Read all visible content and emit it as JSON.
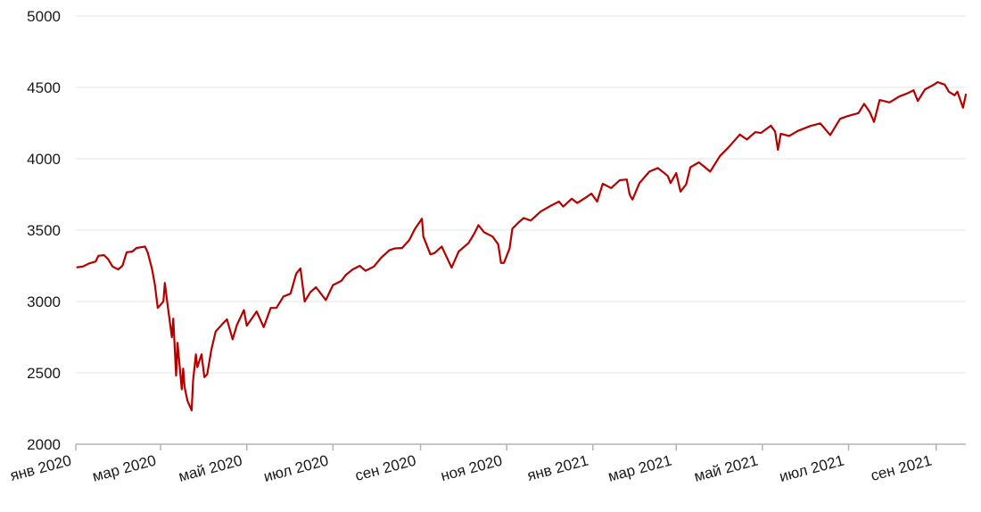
{
  "chart_data": {
    "type": "line",
    "title": "",
    "xlabel": "",
    "ylabel": "",
    "x_range": [
      "2020-01-01",
      "2021-09-22"
    ],
    "ylim": [
      2000,
      5000
    ],
    "y_ticks": [
      {
        "value": 2000,
        "label": "2000"
      },
      {
        "value": 2500,
        "label": "2500"
      },
      {
        "value": 3000,
        "label": "3000"
      },
      {
        "value": 3500,
        "label": "3500"
      },
      {
        "value": 4000,
        "label": "4000"
      },
      {
        "value": 4500,
        "label": "4500"
      },
      {
        "value": 5000,
        "label": "5000"
      }
    ],
    "x_ticks": [
      {
        "date": "2020-01-01",
        "label": "янв 2020"
      },
      {
        "date": "2020-03-01",
        "label": "мар 2020"
      },
      {
        "date": "2020-05-01",
        "label": "май 2020"
      },
      {
        "date": "2020-07-01",
        "label": "июл 2020"
      },
      {
        "date": "2020-09-01",
        "label": "сен 2020"
      },
      {
        "date": "2020-11-01",
        "label": "ноя 2020"
      },
      {
        "date": "2021-01-01",
        "label": "янв 2021"
      },
      {
        "date": "2021-03-01",
        "label": "мар 2021"
      },
      {
        "date": "2021-05-01",
        "label": "май 2021"
      },
      {
        "date": "2021-07-01",
        "label": "июл 2021"
      },
      {
        "date": "2021-09-01",
        "label": "сен 2021"
      }
    ],
    "grid": true,
    "legend": "none",
    "series": [
      {
        "color": "#b50000",
        "points": [
          [
            "2020-01-02",
            3240
          ],
          [
            "2020-01-06",
            3245
          ],
          [
            "2020-01-10",
            3265
          ],
          [
            "2020-01-15",
            3280
          ],
          [
            "2020-01-17",
            3320
          ],
          [
            "2020-01-21",
            3325
          ],
          [
            "2020-01-24",
            3295
          ],
          [
            "2020-01-27",
            3245
          ],
          [
            "2020-01-31",
            3225
          ],
          [
            "2020-02-03",
            3250
          ],
          [
            "2020-02-06",
            3345
          ],
          [
            "2020-02-10",
            3350
          ],
          [
            "2020-02-13",
            3375
          ],
          [
            "2020-02-19",
            3385
          ],
          [
            "2020-02-21",
            3340
          ],
          [
            "2020-02-24",
            3225
          ],
          [
            "2020-02-26",
            3115
          ],
          [
            "2020-02-28",
            2955
          ],
          [
            "2020-03-03",
            3000
          ],
          [
            "2020-03-04",
            3130
          ],
          [
            "2020-03-06",
            2975
          ],
          [
            "2020-03-09",
            2750
          ],
          [
            "2020-03-10",
            2880
          ],
          [
            "2020-03-12",
            2480
          ],
          [
            "2020-03-13",
            2710
          ],
          [
            "2020-03-16",
            2385
          ],
          [
            "2020-03-17",
            2530
          ],
          [
            "2020-03-18",
            2400
          ],
          [
            "2020-03-20",
            2305
          ],
          [
            "2020-03-23",
            2237
          ],
          [
            "2020-03-24",
            2445
          ],
          [
            "2020-03-26",
            2630
          ],
          [
            "2020-03-27",
            2540
          ],
          [
            "2020-03-30",
            2630
          ],
          [
            "2020-04-01",
            2470
          ],
          [
            "2020-04-03",
            2490
          ],
          [
            "2020-04-06",
            2665
          ],
          [
            "2020-04-09",
            2790
          ],
          [
            "2020-04-14",
            2845
          ],
          [
            "2020-04-17",
            2875
          ],
          [
            "2020-04-21",
            2735
          ],
          [
            "2020-04-24",
            2835
          ],
          [
            "2020-04-29",
            2940
          ],
          [
            "2020-05-01",
            2830
          ],
          [
            "2020-05-08",
            2930
          ],
          [
            "2020-05-13",
            2820
          ],
          [
            "2020-05-18",
            2955
          ],
          [
            "2020-05-22",
            2955
          ],
          [
            "2020-05-27",
            3035
          ],
          [
            "2020-06-01",
            3055
          ],
          [
            "2020-06-05",
            3195
          ],
          [
            "2020-06-08",
            3232
          ],
          [
            "2020-06-11",
            3000
          ],
          [
            "2020-06-15",
            3065
          ],
          [
            "2020-06-19",
            3100
          ],
          [
            "2020-06-26",
            3010
          ],
          [
            "2020-07-01",
            3115
          ],
          [
            "2020-07-07",
            3145
          ],
          [
            "2020-07-10",
            3185
          ],
          [
            "2020-07-15",
            3225
          ],
          [
            "2020-07-20",
            3250
          ],
          [
            "2020-07-24",
            3215
          ],
          [
            "2020-07-30",
            3245
          ],
          [
            "2020-08-04",
            3305
          ],
          [
            "2020-08-10",
            3360
          ],
          [
            "2020-08-14",
            3372
          ],
          [
            "2020-08-19",
            3375
          ],
          [
            "2020-08-24",
            3430
          ],
          [
            "2020-08-28",
            3508
          ],
          [
            "2020-09-02",
            3580
          ],
          [
            "2020-09-03",
            3455
          ],
          [
            "2020-09-08",
            3330
          ],
          [
            "2020-09-11",
            3340
          ],
          [
            "2020-09-16",
            3385
          ],
          [
            "2020-09-21",
            3280
          ],
          [
            "2020-09-23",
            3237
          ],
          [
            "2020-09-28",
            3350
          ],
          [
            "2020-10-05",
            3410
          ],
          [
            "2020-10-09",
            3475
          ],
          [
            "2020-10-12",
            3535
          ],
          [
            "2020-10-16",
            3485
          ],
          [
            "2020-10-22",
            3455
          ],
          [
            "2020-10-26",
            3400
          ],
          [
            "2020-10-28",
            3270
          ],
          [
            "2020-10-30",
            3270
          ],
          [
            "2020-11-03",
            3370
          ],
          [
            "2020-11-05",
            3510
          ],
          [
            "2020-11-09",
            3550
          ],
          [
            "2020-11-13",
            3585
          ],
          [
            "2020-11-18",
            3567
          ],
          [
            "2020-11-25",
            3630
          ],
          [
            "2020-12-02",
            3670
          ],
          [
            "2020-12-08",
            3700
          ],
          [
            "2020-12-11",
            3665
          ],
          [
            "2020-12-17",
            3720
          ],
          [
            "2020-12-21",
            3690
          ],
          [
            "2020-12-28",
            3735
          ],
          [
            "2020-12-31",
            3756
          ],
          [
            "2021-01-04",
            3700
          ],
          [
            "2021-01-08",
            3825
          ],
          [
            "2021-01-14",
            3795
          ],
          [
            "2021-01-20",
            3850
          ],
          [
            "2021-01-25",
            3855
          ],
          [
            "2021-01-27",
            3750
          ],
          [
            "2021-01-29",
            3714
          ],
          [
            "2021-02-03",
            3830
          ],
          [
            "2021-02-10",
            3910
          ],
          [
            "2021-02-16",
            3935
          ],
          [
            "2021-02-23",
            3880
          ],
          [
            "2021-02-25",
            3830
          ],
          [
            "2021-03-01",
            3900
          ],
          [
            "2021-03-04",
            3770
          ],
          [
            "2021-03-08",
            3820
          ],
          [
            "2021-03-11",
            3940
          ],
          [
            "2021-03-17",
            3975
          ],
          [
            "2021-03-22",
            3935
          ],
          [
            "2021-03-25",
            3910
          ],
          [
            "2021-04-01",
            4020
          ],
          [
            "2021-04-07",
            4080
          ],
          [
            "2021-04-15",
            4170
          ],
          [
            "2021-04-20",
            4135
          ],
          [
            "2021-04-26",
            4187
          ],
          [
            "2021-04-30",
            4181
          ],
          [
            "2021-05-07",
            4232
          ],
          [
            "2021-05-10",
            4190
          ],
          [
            "2021-05-12",
            4063
          ],
          [
            "2021-05-14",
            4175
          ],
          [
            "2021-05-20",
            4160
          ],
          [
            "2021-05-26",
            4195
          ],
          [
            "2021-06-04",
            4230
          ],
          [
            "2021-06-11",
            4248
          ],
          [
            "2021-06-18",
            4166
          ],
          [
            "2021-06-25",
            4280
          ],
          [
            "2021-06-30",
            4298
          ],
          [
            "2021-07-08",
            4320
          ],
          [
            "2021-07-12",
            4385
          ],
          [
            "2021-07-16",
            4327
          ],
          [
            "2021-07-19",
            4258
          ],
          [
            "2021-07-23",
            4412
          ],
          [
            "2021-07-30",
            4395
          ],
          [
            "2021-08-06",
            4437
          ],
          [
            "2021-08-12",
            4460
          ],
          [
            "2021-08-16",
            4480
          ],
          [
            "2021-08-19",
            4405
          ],
          [
            "2021-08-24",
            4485
          ],
          [
            "2021-08-31",
            4523
          ],
          [
            "2021-09-02",
            4537
          ],
          [
            "2021-09-07",
            4520
          ],
          [
            "2021-09-10",
            4470
          ],
          [
            "2021-09-14",
            4445
          ],
          [
            "2021-09-16",
            4470
          ],
          [
            "2021-09-20",
            4358
          ],
          [
            "2021-09-22",
            4450
          ]
        ]
      }
    ]
  }
}
